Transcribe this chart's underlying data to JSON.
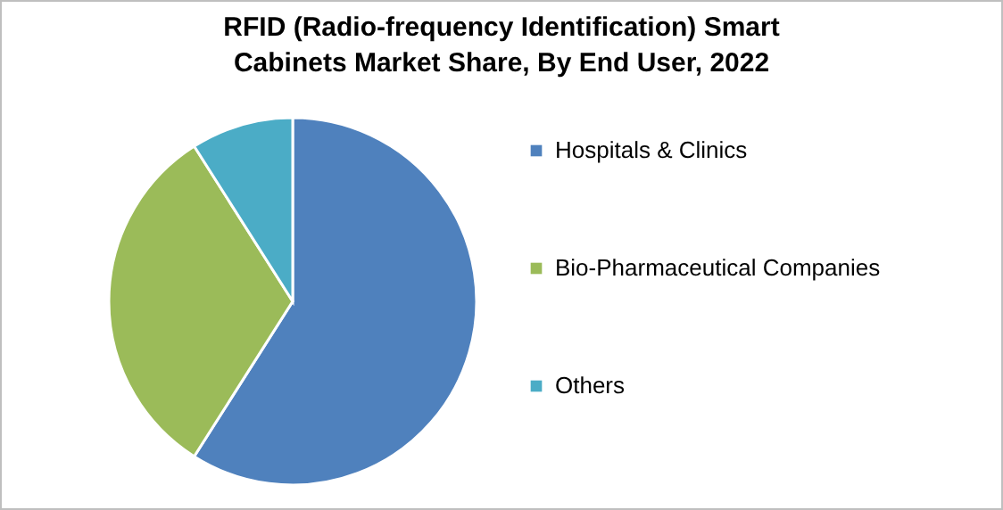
{
  "chart_data": {
    "type": "pie",
    "title": "RFID (Radio-frequency Identification) Smart Cabinets Market Share, By End User, 2022",
    "categories": [
      "Hospitals & Clinics",
      "Bio-Pharmaceutical Companies",
      "Others"
    ],
    "values": [
      59,
      32,
      9
    ],
    "colors": [
      "#4f81bd",
      "#9bbb59",
      "#4bacc6"
    ],
    "legend": "right"
  }
}
